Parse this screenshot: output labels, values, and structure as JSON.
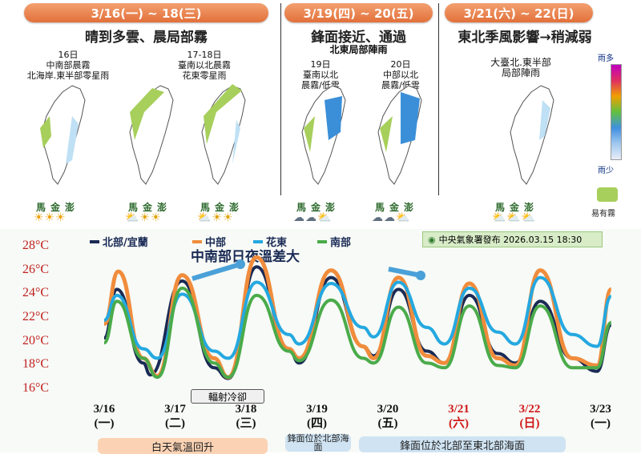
{
  "periods": [
    {
      "label": "3/16(一) ~ 18(三)",
      "headline": "晴到多雲、晨局部霧"
    },
    {
      "label": "3/19(四) ~ 20(五)",
      "headline": "鋒面接近、通過",
      "note": "北東局部陣雨"
    },
    {
      "label": "3/21(六) ~ 22(日)",
      "headline": "東北季風影響→稍減弱"
    }
  ],
  "maps": [
    {
      "day": "16日",
      "text1": "中南部晨霧",
      "text2": "北海岸.東半部零星雨"
    },
    {
      "day": "17-18日",
      "text1": "臺南以北晨霧",
      "text2": "花東零星雨"
    },
    {
      "day": "19日",
      "text1": "臺南以北",
      "text2": "晨霧/低雲"
    },
    {
      "day": "20日",
      "text1": "中部以北",
      "text2": "晨霧/低雲"
    },
    {
      "day": "",
      "text1": "大臺北.東半部",
      "text2": "局部陣雨"
    }
  ],
  "islands": "馬金澎",
  "legend": {
    "more": "雨多",
    "less": "雨少",
    "fog": "易有霧"
  },
  "chart_data": {
    "type": "line",
    "title": "中南部日夜溫差大",
    "source": "中央氣象署發布 2026.03.15 18:30",
    "ylim": [
      16,
      28
    ],
    "yticks": [
      "28°C",
      "26°C",
      "24°C",
      "22°C",
      "20°C",
      "18°C",
      "16°C"
    ],
    "x": [
      "3/16",
      "3/17",
      "3/18",
      "3/19",
      "3/20",
      "3/21",
      "3/22",
      "3/23"
    ],
    "x_weekday": [
      "(一)",
      "(二)",
      "(三)",
      "(四)",
      "(五)",
      "(六)",
      "(日)",
      "(一)"
    ],
    "x_red": [
      false,
      false,
      false,
      false,
      false,
      true,
      true,
      false
    ],
    "series": [
      {
        "name": "北部/宜蘭",
        "color": "#1a2a55",
        "points": [
          [
            0,
            20.3
          ],
          [
            0.18,
            24.4
          ],
          [
            0.55,
            18.2
          ],
          [
            0.65,
            17.2
          ],
          [
            1.1,
            25.1
          ],
          [
            1.55,
            17.8
          ],
          [
            1.75,
            16.9
          ],
          [
            2.15,
            26.3
          ],
          [
            2.6,
            19.4
          ],
          [
            2.75,
            18.2
          ],
          [
            3.2,
            25.4
          ],
          [
            3.65,
            19.6
          ],
          [
            3.8,
            18.8
          ],
          [
            4.15,
            24.4
          ],
          [
            4.55,
            19.2
          ],
          [
            4.8,
            18.2
          ],
          [
            5.15,
            23.9
          ],
          [
            5.55,
            19.0
          ],
          [
            5.8,
            18.2
          ],
          [
            6.15,
            23.4
          ],
          [
            6.6,
            18.6
          ],
          [
            6.95,
            17.5
          ],
          [
            7.15,
            21.4
          ]
        ]
      },
      {
        "name": "中部",
        "color": "#f08c3c",
        "points": [
          [
            0,
            21.5
          ],
          [
            0.2,
            25.9
          ],
          [
            0.55,
            18.6
          ],
          [
            0.75,
            17.1
          ],
          [
            1.1,
            25.6
          ],
          [
            1.55,
            18.6
          ],
          [
            1.75,
            17.0
          ],
          [
            2.15,
            27.1
          ],
          [
            2.6,
            19.4
          ],
          [
            2.75,
            18.6
          ],
          [
            3.2,
            26.0
          ],
          [
            3.65,
            19.6
          ],
          [
            3.8,
            18.6
          ],
          [
            4.15,
            25.4
          ],
          [
            4.55,
            18.8
          ],
          [
            4.8,
            18.2
          ],
          [
            5.15,
            24.9
          ],
          [
            5.55,
            18.6
          ],
          [
            5.8,
            18.0
          ],
          [
            6.15,
            26.0
          ],
          [
            6.6,
            18.6
          ],
          [
            6.95,
            18.0
          ],
          [
            7.15,
            24.4
          ]
        ]
      },
      {
        "name": "花東",
        "color": "#24a8e0",
        "points": [
          [
            0,
            21.8
          ],
          [
            0.18,
            23.9
          ],
          [
            0.55,
            19.4
          ],
          [
            0.75,
            18.6
          ],
          [
            1.1,
            24.0
          ],
          [
            1.55,
            19.2
          ],
          [
            1.75,
            18.6
          ],
          [
            2.15,
            25.0
          ],
          [
            2.6,
            20.6
          ],
          [
            2.75,
            19.8
          ],
          [
            3.2,
            24.9
          ],
          [
            3.65,
            21.2
          ],
          [
            3.8,
            20.4
          ],
          [
            4.15,
            25.0
          ],
          [
            4.55,
            21.2
          ],
          [
            4.8,
            19.8
          ],
          [
            5.15,
            24.5
          ],
          [
            5.55,
            20.8
          ],
          [
            5.8,
            19.8
          ],
          [
            6.15,
            25.4
          ],
          [
            6.6,
            20.6
          ],
          [
            6.95,
            19.6
          ],
          [
            7.15,
            23.8
          ]
        ]
      },
      {
        "name": "南部",
        "color": "#4aab4a",
        "points": [
          [
            0,
            19.9
          ],
          [
            0.18,
            23.4
          ],
          [
            0.55,
            18.6
          ],
          [
            0.75,
            17.0
          ],
          [
            1.1,
            24.5
          ],
          [
            1.55,
            18.2
          ],
          [
            1.75,
            17.0
          ],
          [
            2.15,
            23.9
          ],
          [
            2.6,
            19.2
          ],
          [
            2.75,
            18.4
          ],
          [
            3.2,
            23.5
          ],
          [
            3.65,
            18.6
          ],
          [
            3.8,
            18.2
          ],
          [
            4.15,
            22.9
          ],
          [
            4.55,
            18.2
          ],
          [
            4.8,
            17.8
          ],
          [
            5.15,
            23.0
          ],
          [
            5.55,
            18.0
          ],
          [
            5.8,
            17.8
          ],
          [
            6.15,
            23.0
          ],
          [
            6.6,
            17.8
          ],
          [
            6.95,
            17.8
          ],
          [
            7.15,
            21.6
          ]
        ]
      }
    ],
    "annotations": {
      "radiation": "輻射冷卻",
      "day_warm": "白天氣溫回升",
      "front1": "鋒面位於北部海面",
      "front2": "鋒面位於北部至東北部海面"
    }
  }
}
